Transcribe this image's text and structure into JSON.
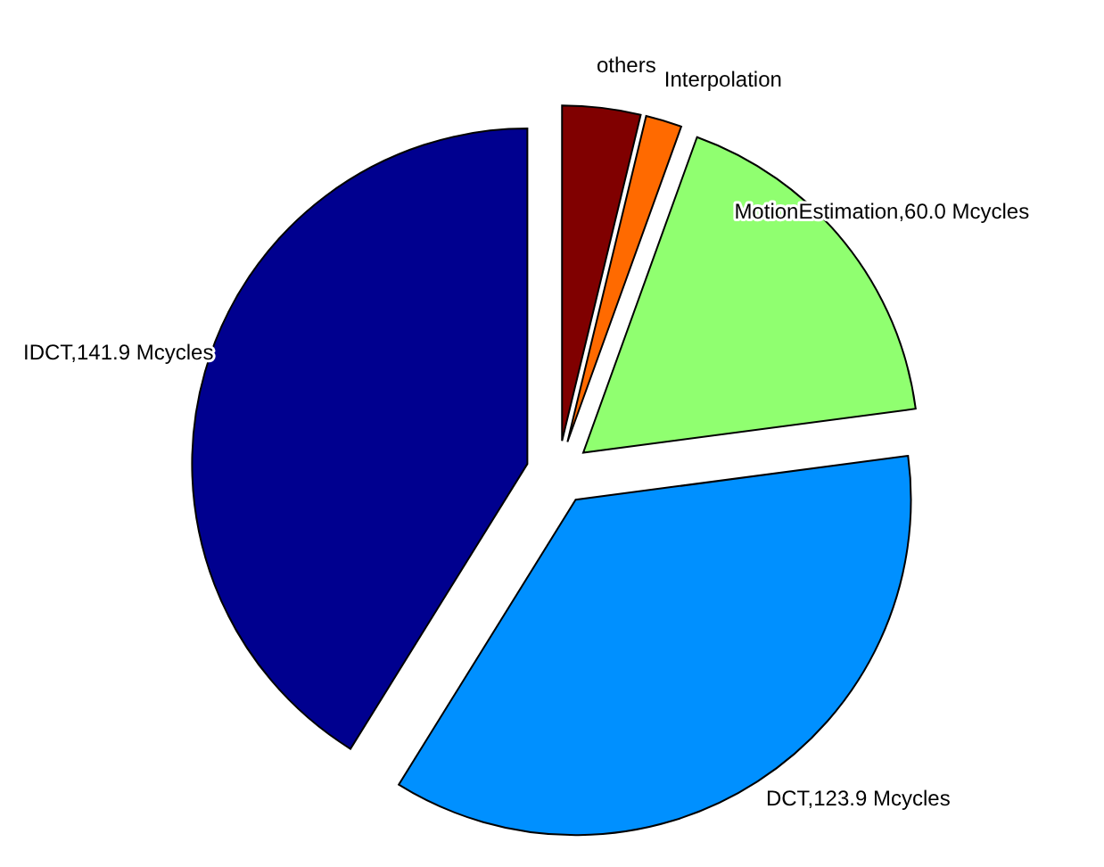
{
  "chart_data": {
    "type": "pie",
    "categories": [
      "others",
      "Interpolation",
      "MotionEstimation,60.0 Mcycles",
      "DCT,123.9 Mcycles",
      "IDCT,141.9 Mcycles"
    ],
    "values": [
      13,
      6,
      60.0,
      123.9,
      141.9
    ],
    "colors": [
      "#800000",
      "#ff6a00",
      "#90ff70",
      "#0090ff",
      "#00008f"
    ],
    "legend": false
  }
}
